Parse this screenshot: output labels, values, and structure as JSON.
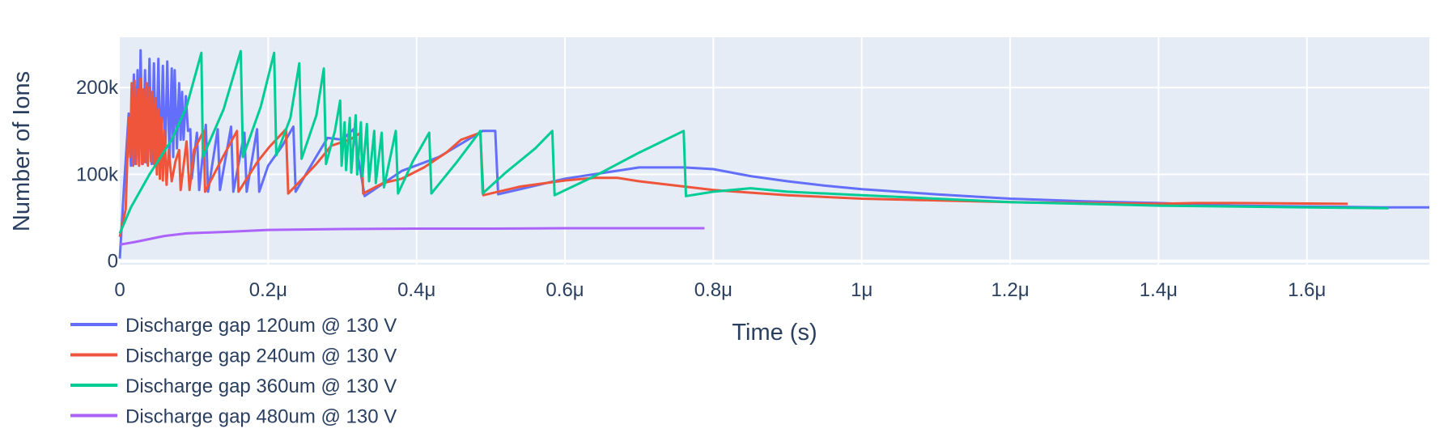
{
  "chart_data": {
    "type": "line",
    "xlabel": "Time (s)",
    "ylabel": "Number of Ions",
    "xlim": [
      0,
      1.765e-06
    ],
    "ylim": [
      -4000,
      258000
    ],
    "x_ticks": [
      {
        "value": 0,
        "label": "0"
      },
      {
        "value": 2e-07,
        "label": "0.2μ"
      },
      {
        "value": 4e-07,
        "label": "0.4μ"
      },
      {
        "value": 6e-07,
        "label": "0.6μ"
      },
      {
        "value": 8e-07,
        "label": "0.8μ"
      },
      {
        "value": 1e-06,
        "label": "1μ"
      },
      {
        "value": 1.2e-06,
        "label": "1.2μ"
      },
      {
        "value": 1.4e-06,
        "label": "1.4μ"
      },
      {
        "value": 1.6e-06,
        "label": "1.6μ"
      }
    ],
    "y_ticks": [
      {
        "value": 0,
        "label": "0"
      },
      {
        "value": 100000,
        "label": "100k"
      },
      {
        "value": 200000,
        "label": "200k"
      }
    ],
    "grid": true,
    "legend_position": "bottom-left",
    "plot_background": "#e5ecf6",
    "series": [
      {
        "name": "Discharge gap 120um @ 130 V",
        "color": "#636efa",
        "points": [
          [
            0,
            3000
          ],
          [
            6e-09,
            90000
          ],
          [
            1.2e-08,
            170000
          ],
          [
            1.5e-08,
            110000
          ],
          [
            1.9e-08,
            215000
          ],
          [
            2.1e-08,
            112000
          ],
          [
            2.4e-08,
            220000
          ],
          [
            2.6e-08,
            115000
          ],
          [
            2.8e-08,
            243000
          ],
          [
            3.1e-08,
            112000
          ],
          [
            3.4e-08,
            220000
          ],
          [
            3.7e-08,
            113000
          ],
          [
            4e-08,
            233000
          ],
          [
            4.3e-08,
            112000
          ],
          [
            4.6e-08,
            228000
          ],
          [
            4.9e-08,
            113000
          ],
          [
            5.2e-08,
            233000
          ],
          [
            5.5e-08,
            114000
          ],
          [
            5.8e-08,
            225000
          ],
          [
            6.1e-08,
            116000
          ],
          [
            6.4e-08,
            230000
          ],
          [
            6.7e-08,
            118000
          ],
          [
            7e-08,
            222000
          ],
          [
            7.2e-08,
            120000
          ],
          [
            7.4e-08,
            220000
          ],
          [
            7.7e-08,
            130000
          ],
          [
            8e-08,
            205000
          ],
          [
            8.2e-08,
            140000
          ],
          [
            8.4e-08,
            195000
          ],
          [
            8.6e-08,
            140000
          ],
          [
            8.9e-08,
            190000
          ],
          [
            9.2e-08,
            150000
          ],
          [
            9.5e-08,
            152000
          ],
          [
            9.7e-08,
            95000
          ],
          [
            1.04e-07,
            148000
          ],
          [
            1.07e-07,
            82000
          ],
          [
            1.16e-07,
            157000
          ],
          [
            1.19e-07,
            80000
          ],
          [
            1.32e-07,
            152000
          ],
          [
            1.35e-07,
            82000
          ],
          [
            1.5e-07,
            155000
          ],
          [
            1.53e-07,
            80000
          ],
          [
            1.68e-07,
            148000
          ],
          [
            1.71e-07,
            80000
          ],
          [
            1.85e-07,
            152000
          ],
          [
            1.88e-07,
            80000
          ],
          [
            2e-07,
            110000
          ],
          [
            2.19e-07,
            133000
          ],
          [
            2.34e-07,
            155000
          ],
          [
            2.37e-07,
            80000
          ],
          [
            2.63e-07,
            118000
          ],
          [
            2.8e-07,
            142000
          ],
          [
            3e-07,
            140000
          ],
          [
            3.15e-07,
            152000
          ],
          [
            3.3e-07,
            75000
          ],
          [
            3.8e-07,
            104000
          ],
          [
            4.3e-07,
            120000
          ],
          [
            4.89e-07,
            150000
          ],
          [
            5.06e-07,
            150000
          ],
          [
            5.1e-07,
            77000
          ],
          [
            6e-07,
            95000
          ],
          [
            7e-07,
            108000
          ],
          [
            7.6e-07,
            108000
          ],
          [
            8e-07,
            106000
          ],
          [
            8.5e-07,
            98000
          ],
          [
            9e-07,
            92000
          ],
          [
            9.5e-07,
            87000
          ],
          [
            1e-06,
            83000
          ],
          [
            1.1e-06,
            77000
          ],
          [
            1.2e-06,
            72000
          ],
          [
            1.3e-06,
            69000
          ],
          [
            1.4e-06,
            67000
          ],
          [
            1.5e-06,
            64000
          ],
          [
            1.6e-06,
            63000
          ],
          [
            1.7e-06,
            62000
          ],
          [
            1.765e-06,
            62000
          ]
        ]
      },
      {
        "name": "Discharge gap 240um @ 130 V",
        "color": "#ef553b",
        "points": [
          [
            0,
            28000
          ],
          [
            8e-09,
            60000
          ],
          [
            1.2e-08,
            165000
          ],
          [
            1.4e-08,
            120000
          ],
          [
            1.6e-08,
            205000
          ],
          [
            1.8e-08,
            110000
          ],
          [
            2e-08,
            208000
          ],
          [
            2.2e-08,
            112000
          ],
          [
            2.4e-08,
            198000
          ],
          [
            2.6e-08,
            110000
          ],
          [
            2.8e-08,
            210000
          ],
          [
            3e-08,
            112000
          ],
          [
            3.2e-08,
            198000
          ],
          [
            3.4e-08,
            114000
          ],
          [
            3.6e-08,
            205000
          ],
          [
            3.8e-08,
            110000
          ],
          [
            4e-08,
            200000
          ],
          [
            4.2e-08,
            115000
          ],
          [
            4.4e-08,
            195000
          ],
          [
            4.6e-08,
            112000
          ],
          [
            4.8e-08,
            188000
          ],
          [
            5e-08,
            100000
          ],
          [
            5.2e-08,
            175000
          ],
          [
            5.4e-08,
            95000
          ],
          [
            5.6e-08,
            165000
          ],
          [
            5.8e-08,
            93000
          ],
          [
            6e-08,
            150000
          ],
          [
            6.3e-08,
            88000
          ],
          [
            6.6e-08,
            128000
          ],
          [
            7e-08,
            92000
          ],
          [
            7.5e-08,
            115000
          ],
          [
            8e-08,
            128000
          ],
          [
            8.2e-08,
            82000
          ],
          [
            9e-08,
            138000
          ],
          [
            9.4e-08,
            82000
          ],
          [
            1e-07,
            128000
          ],
          [
            1.13e-07,
            150000
          ],
          [
            1.15e-07,
            80000
          ],
          [
            1.39e-07,
            120000
          ],
          [
            1.58e-07,
            150000
          ],
          [
            1.6e-07,
            80000
          ],
          [
            1.86e-07,
            115000
          ],
          [
            2.02e-07,
            132000
          ],
          [
            2.24e-07,
            152000
          ],
          [
            2.27e-07,
            78000
          ],
          [
            2.45e-07,
            94000
          ],
          [
            2.65e-07,
            112000
          ],
          [
            2.85e-07,
            133000
          ],
          [
            3.1e-07,
            140000
          ],
          [
            3.25e-07,
            148000
          ],
          [
            3.28e-07,
            78000
          ],
          [
            3.55e-07,
            90000
          ],
          [
            3.8e-07,
            95000
          ],
          [
            4.1e-07,
            108000
          ],
          [
            4.4e-07,
            125000
          ],
          [
            4.6e-07,
            140000
          ],
          [
            4.86e-07,
            148000
          ],
          [
            4.9e-07,
            76000
          ],
          [
            5.4e-07,
            86000
          ],
          [
            6e-07,
            93000
          ],
          [
            6.4e-07,
            96000
          ],
          [
            6.7e-07,
            96000
          ],
          [
            7e-07,
            92000
          ],
          [
            8e-07,
            82000
          ],
          [
            9e-07,
            76000
          ],
          [
            1e-06,
            72000
          ],
          [
            1.1e-06,
            70000
          ],
          [
            1.2e-06,
            68000
          ],
          [
            1.3e-06,
            67000
          ],
          [
            1.4e-06,
            66000
          ],
          [
            1.45e-06,
            67000
          ],
          [
            1.5e-06,
            67000
          ],
          [
            1.655e-06,
            66000
          ]
        ]
      },
      {
        "name": "Discharge gap 360um @ 130 V",
        "color": "#00cc96",
        "points": [
          [
            0,
            32000
          ],
          [
            1.5e-08,
            62000
          ],
          [
            4e-08,
            100000
          ],
          [
            7e-08,
            140000
          ],
          [
            9e-08,
            178000
          ],
          [
            1.1e-07,
            240000
          ],
          [
            1.12e-07,
            120000
          ],
          [
            1.4e-07,
            175000
          ],
          [
            1.63e-07,
            242000
          ],
          [
            1.66e-07,
            120000
          ],
          [
            1.9e-07,
            178000
          ],
          [
            2.08e-07,
            240000
          ],
          [
            2.11e-07,
            122000
          ],
          [
            2.3e-07,
            165000
          ],
          [
            2.42e-07,
            228000
          ],
          [
            2.45e-07,
            118000
          ],
          [
            2.65e-07,
            168000
          ],
          [
            2.75e-07,
            222000
          ],
          [
            2.78e-07,
            112000
          ],
          [
            2.9e-07,
            150000
          ],
          [
            2.97e-07,
            185000
          ],
          [
            2.99e-07,
            110000
          ],
          [
            3.03e-07,
            160000
          ],
          [
            3.05e-07,
            105000
          ],
          [
            3.1e-07,
            165000
          ],
          [
            3.12e-07,
            102000
          ],
          [
            3.18e-07,
            168000
          ],
          [
            3.2e-07,
            100000
          ],
          [
            3.25e-07,
            160000
          ],
          [
            3.27e-07,
            98000
          ],
          [
            3.33e-07,
            158000
          ],
          [
            3.36e-07,
            92000
          ],
          [
            3.43e-07,
            150000
          ],
          [
            3.45e-07,
            90000
          ],
          [
            3.53e-07,
            148000
          ],
          [
            3.56e-07,
            85000
          ],
          [
            3.72e-07,
            150000
          ],
          [
            3.75e-07,
            78000
          ],
          [
            3.95e-07,
            115000
          ],
          [
            4.17e-07,
            148000
          ],
          [
            4.2e-07,
            78000
          ],
          [
            4.55e-07,
            115000
          ],
          [
            4.86e-07,
            150000
          ],
          [
            4.89e-07,
            78000
          ],
          [
            5.2e-07,
            102000
          ],
          [
            5.6e-07,
            130000
          ],
          [
            5.83e-07,
            150000
          ],
          [
            5.86e-07,
            76000
          ],
          [
            6.4e-07,
            98000
          ],
          [
            7e-07,
            125000
          ],
          [
            7.6e-07,
            150000
          ],
          [
            7.63e-07,
            75000
          ],
          [
            8e-07,
            80000
          ],
          [
            8.5e-07,
            84000
          ],
          [
            9e-07,
            80000
          ],
          [
            1e-06,
            76000
          ],
          [
            1.1e-06,
            72000
          ],
          [
            1.2e-06,
            68000
          ],
          [
            1.3e-06,
            66000
          ],
          [
            1.4e-06,
            64000
          ],
          [
            1.5e-06,
            63000
          ],
          [
            1.6e-06,
            62000
          ],
          [
            1.71e-06,
            61000
          ]
        ]
      },
      {
        "name": "Discharge gap 480um @ 130 V",
        "color": "#ab63fa",
        "points": [
          [
            0,
            19000
          ],
          [
            2e-08,
            22000
          ],
          [
            6e-08,
            29000
          ],
          [
            9e-08,
            32000
          ],
          [
            1.5e-07,
            34000
          ],
          [
            2e-07,
            36000
          ],
          [
            3e-07,
            37000
          ],
          [
            4e-07,
            37500
          ],
          [
            5e-07,
            37500
          ],
          [
            6e-07,
            38000
          ],
          [
            7e-07,
            38000
          ],
          [
            7.88e-07,
            38000
          ]
        ]
      }
    ]
  }
}
